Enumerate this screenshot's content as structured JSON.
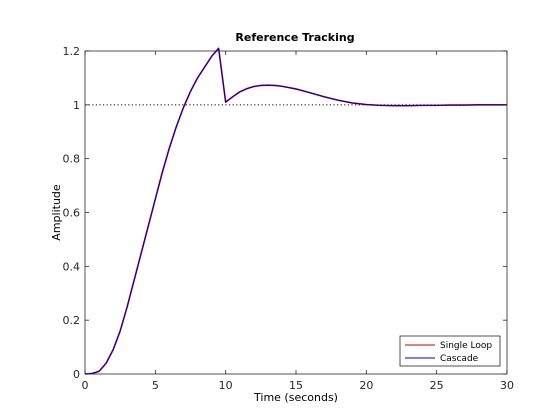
{
  "chart_data": {
    "type": "line",
    "title": "Reference Tracking",
    "xlabel": "Time (seconds)",
    "ylabel": "Amplitude",
    "xlim": [
      0,
      30
    ],
    "ylim": [
      0,
      1.2
    ],
    "xticks": [
      0,
      5,
      10,
      15,
      20,
      25,
      30
    ],
    "yticks": [
      0,
      0.2,
      0.4,
      0.6,
      0.8,
      1,
      1.2
    ],
    "grid": false,
    "legend_position": "bottom-right",
    "reference_line": {
      "y": 1,
      "style": "dotted",
      "color": "#000000"
    },
    "series": [
      {
        "name": "Single Loop",
        "color": "#cc0000",
        "x": [
          0,
          0.5,
          1,
          1.5,
          2,
          2.5,
          3,
          3.5,
          4,
          4.5,
          5,
          5.5,
          6,
          6.5,
          7,
          7.5,
          8,
          8.5,
          9,
          9.5,
          10,
          10.5,
          11,
          11.5,
          12,
          12.5,
          13,
          13.5,
          14,
          15,
          16,
          17,
          18,
          19,
          20,
          21,
          22,
          23,
          24,
          25,
          26,
          27,
          28,
          29,
          30
        ],
        "values": [
          0,
          0.002,
          0.01,
          0.04,
          0.09,
          0.16,
          0.25,
          0.35,
          0.45,
          0.55,
          0.65,
          0.75,
          0.84,
          0.92,
          0.99,
          1.05,
          1.1,
          1.14,
          1.18,
          1.21,
          1.01,
          1.03,
          1.048,
          1.06,
          1.068,
          1.072,
          1.073,
          1.072,
          1.069,
          1.059,
          1.045,
          1.03,
          1.017,
          1.007,
          1.001,
          0.998,
          0.997,
          0.997,
          0.998,
          0.998,
          0.999,
          0.999,
          1,
          1,
          1
        ]
      },
      {
        "name": "Cascade",
        "color": "#0000cc",
        "x": [
          0,
          0.5,
          1,
          1.5,
          2,
          2.5,
          3,
          3.5,
          4,
          4.5,
          5,
          5.5,
          6,
          6.5,
          7,
          7.5,
          8,
          8.5,
          9,
          9.5,
          10,
          10.5,
          11,
          11.5,
          12,
          12.5,
          13,
          13.5,
          14,
          15,
          16,
          17,
          18,
          19,
          20,
          21,
          22,
          23,
          24,
          25,
          26,
          27,
          28,
          29,
          30
        ],
        "values": [
          0,
          0.002,
          0.01,
          0.04,
          0.09,
          0.16,
          0.25,
          0.35,
          0.45,
          0.55,
          0.65,
          0.75,
          0.84,
          0.92,
          0.99,
          1.05,
          1.1,
          1.14,
          1.18,
          1.21,
          1.01,
          1.03,
          1.048,
          1.06,
          1.068,
          1.072,
          1.073,
          1.072,
          1.069,
          1.059,
          1.045,
          1.03,
          1.017,
          1.007,
          1.001,
          0.998,
          0.997,
          0.997,
          0.998,
          0.998,
          0.999,
          0.999,
          1,
          1,
          1
        ]
      }
    ]
  }
}
